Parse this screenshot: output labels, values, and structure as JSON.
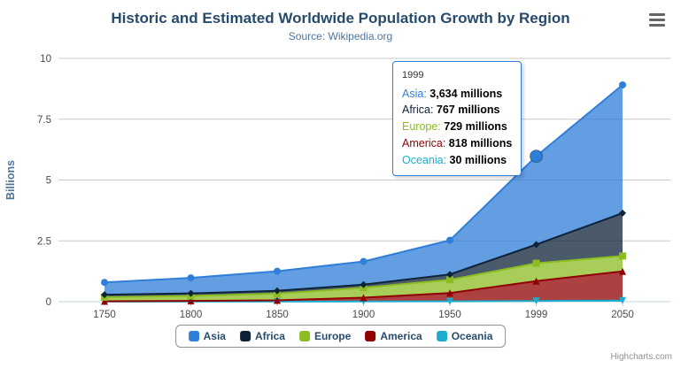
{
  "chart_data": {
    "type": "area",
    "stacking": "normal",
    "title": "Historic and Estimated Worldwide Population Growth by Region",
    "subtitle": "Source: Wikipedia.org",
    "xlabel": "",
    "ylabel": "Billions",
    "categories": [
      "1750",
      "1800",
      "1850",
      "1900",
      "1950",
      "1999",
      "2050"
    ],
    "yticks": [
      0,
      2.5,
      5,
      7.5,
      10
    ],
    "ylim": [
      0,
      10
    ],
    "unit": "millions",
    "fill_opacity": 0.75,
    "grid": true,
    "legend_position": "bottom",
    "series": [
      {
        "name": "Asia",
        "color": "#2f7ed8",
        "marker": "circle",
        "values": [
          502,
          635,
          809,
          947,
          1402,
          3634,
          5268
        ]
      },
      {
        "name": "Africa",
        "color": "#0d233a",
        "marker": "diamond",
        "values": [
          106,
          107,
          111,
          133,
          221,
          767,
          1766
        ]
      },
      {
        "name": "Europe",
        "color": "#8bbc21",
        "marker": "square",
        "values": [
          163,
          203,
          276,
          408,
          547,
          729,
          628
        ]
      },
      {
        "name": "America",
        "color": "#910000",
        "marker": "triangle",
        "values": [
          18,
          31,
          54,
          156,
          339,
          818,
          1201
        ]
      },
      {
        "name": "Oceania",
        "color": "#1aadce",
        "marker": "triangle-down",
        "values": [
          2,
          2,
          2,
          6,
          13,
          30,
          46
        ]
      }
    ],
    "stack_order_bottom_to_top": [
      "Oceania",
      "America",
      "Europe",
      "Africa",
      "Asia"
    ]
  },
  "tooltip": {
    "category": "1999",
    "hover_series": "Asia",
    "hover_index": 5,
    "value_suffix": "millions",
    "rows": [
      {
        "name": "Asia",
        "value": "3,634 millions"
      },
      {
        "name": "Africa",
        "value": "767 millions"
      },
      {
        "name": "Europe",
        "value": "729 millions"
      },
      {
        "name": "America",
        "value": "818 millions"
      },
      {
        "name": "Oceania",
        "value": "30 millions"
      }
    ]
  },
  "credits": {
    "label": "Highcharts.com"
  },
  "menu": {
    "icon": "hamburger-menu-icon"
  }
}
